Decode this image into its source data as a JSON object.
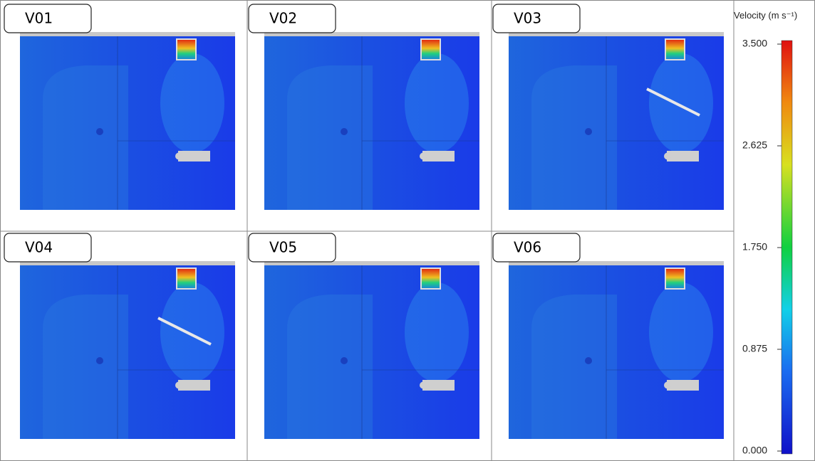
{
  "panels": [
    {
      "label": "V01"
    },
    {
      "label": "V02"
    },
    {
      "label": "V03"
    },
    {
      "label": "V04"
    },
    {
      "label": "V05"
    },
    {
      "label": "V06"
    }
  ],
  "colorbar": {
    "title": "Velocity (m s⁻¹)",
    "range": [
      0,
      3.5
    ],
    "ticks": [
      {
        "value": 3.5,
        "label": "3.500"
      },
      {
        "value": 2.625,
        "label": "2.625"
      },
      {
        "value": 1.75,
        "label": "1.750"
      },
      {
        "value": 0.875,
        "label": "0.875"
      },
      {
        "value": 0,
        "label": "0.000"
      }
    ]
  }
}
